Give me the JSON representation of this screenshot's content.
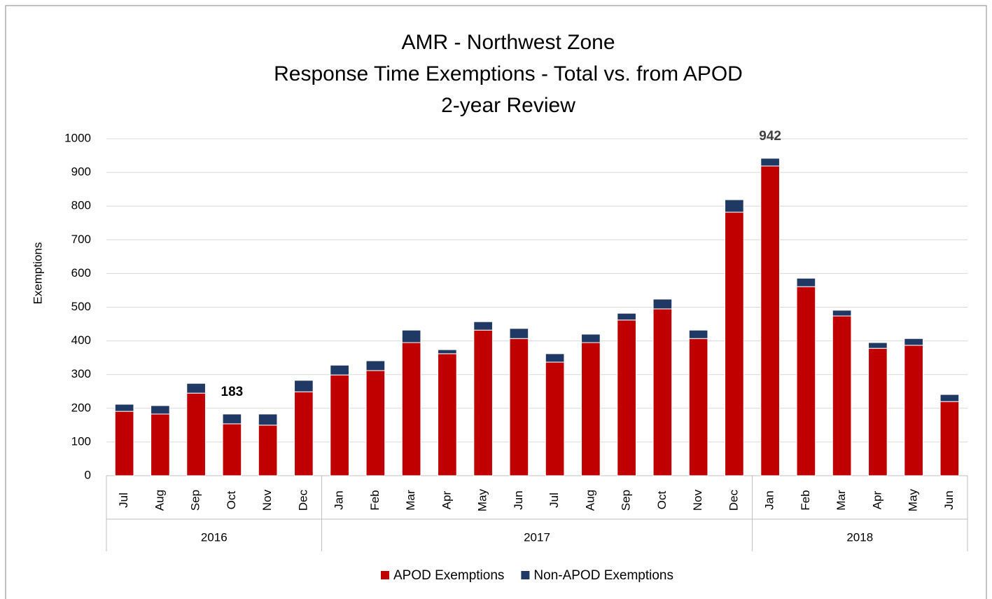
{
  "chart_data": {
    "type": "stacked_bar",
    "title": [
      "AMR - Northwest Zone",
      "Response Time Exemptions - Total vs. from APOD",
      "2-year Review"
    ],
    "y_label": "Exemptions",
    "categories": [
      "Jul",
      "Aug",
      "Sep",
      "Oct",
      "Nov",
      "Dec",
      "Jan",
      "Feb",
      "Mar",
      "Apr",
      "May",
      "Jun",
      "Jul",
      "Aug",
      "Sep",
      "Oct",
      "Nov",
      "Dec",
      "Jan",
      "Feb",
      "Mar",
      "Apr",
      "May",
      "Jun"
    ],
    "category_groups": [
      {
        "label": "2016",
        "span": 6
      },
      {
        "label": "2017",
        "span": 12
      },
      {
        "label": "2018",
        "span": 6
      }
    ],
    "series": [
      {
        "name": "APOD Exemptions",
        "color": "#c00000",
        "values": [
          191,
          183,
          245,
          154,
          150,
          249,
          299,
          312,
          395,
          362,
          432,
          407,
          337,
          395,
          462,
          495,
          407,
          782,
          919,
          561,
          474,
          378,
          387,
          220
        ]
      },
      {
        "name": "Non-APOD Exemptions",
        "color": "#203864",
        "values": [
          21,
          25,
          29,
          29,
          33,
          34,
          29,
          29,
          37,
          12,
          25,
          30,
          25,
          25,
          20,
          29,
          25,
          37,
          23,
          25,
          17,
          17,
          20,
          21
        ]
      }
    ],
    "annotations": [
      {
        "value": 183,
        "label": "183"
      },
      {
        "value": 942,
        "label": "942"
      }
    ],
    "ylim": [
      0,
      1000
    ],
    "yticks": [
      0,
      100,
      200,
      300,
      400,
      500,
      600,
      700,
      800,
      900,
      1000
    ],
    "grid": true,
    "legend": "bottom"
  }
}
